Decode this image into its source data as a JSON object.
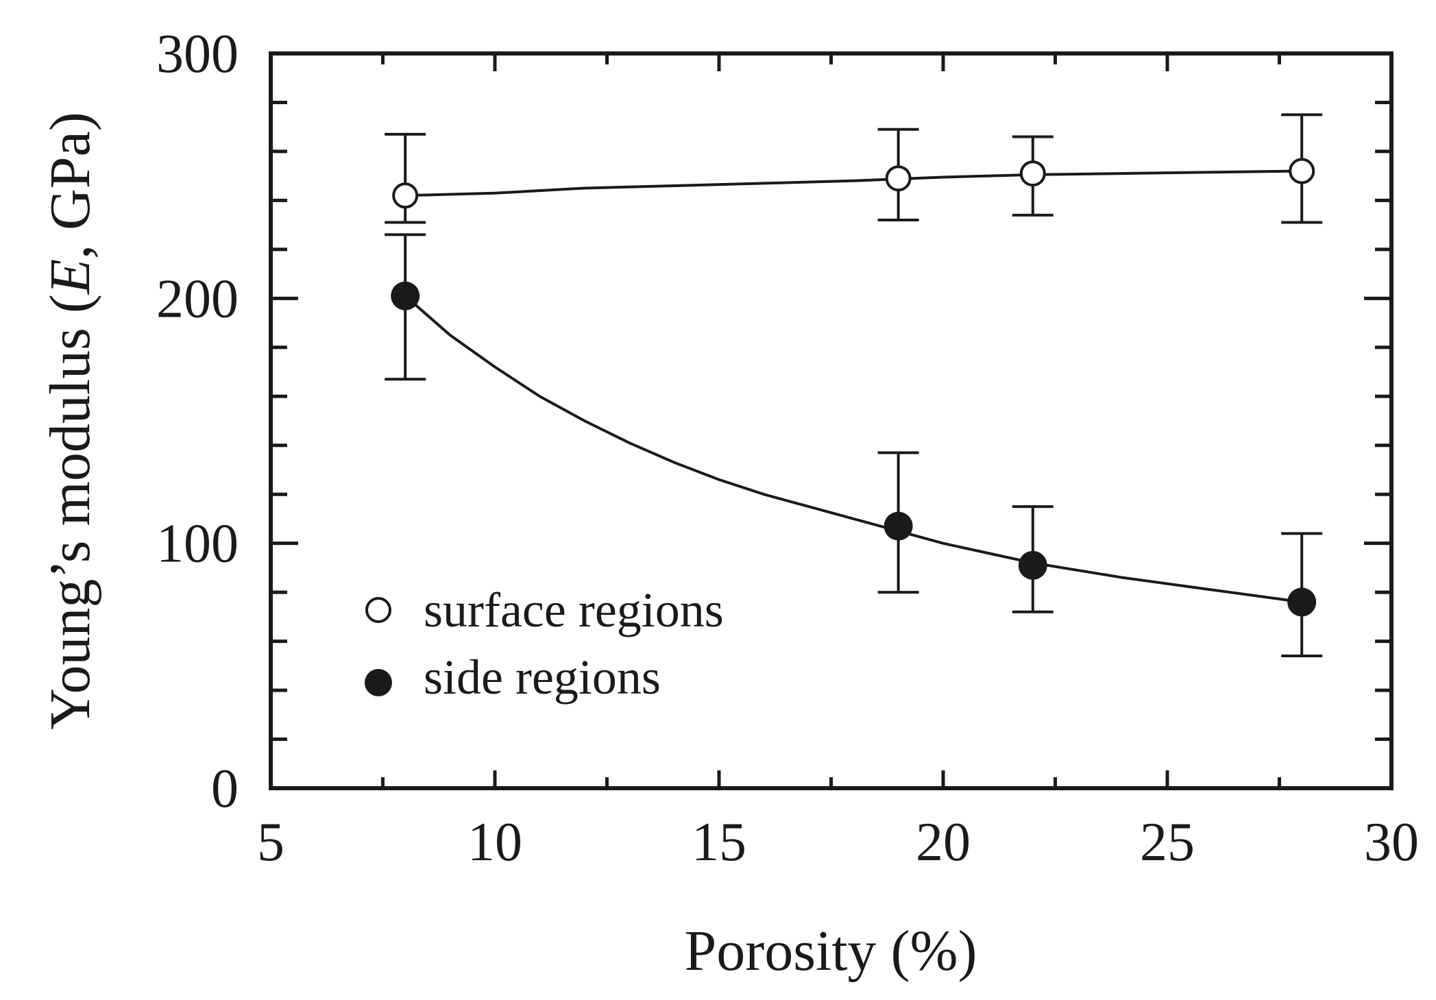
{
  "chart_data": {
    "type": "scatter",
    "title": "",
    "xlabel": "Porosity (%)",
    "ylabel": "Young’s modulus (E, GPa)",
    "ylabel_parts": {
      "before": "Young’s modulus (",
      "italic": "E",
      "after": ", GPa)"
    },
    "xlim": [
      5,
      30
    ],
    "ylim": [
      0,
      300
    ],
    "xticks": [
      5,
      10,
      15,
      20,
      25,
      30
    ],
    "yticks": [
      0,
      100,
      200,
      300
    ],
    "x_minor_step": 2.5,
    "y_minor_step": 20,
    "grid": false,
    "legend_position": "bottom-left",
    "series": [
      {
        "name": "surface regions",
        "marker": "open-circle",
        "points": [
          {
            "x": 8,
            "y": 242,
            "err_low": 231,
            "err_high": 267
          },
          {
            "x": 19,
            "y": 249,
            "err_low": 232,
            "err_high": 269
          },
          {
            "x": 22,
            "y": 251,
            "err_low": 234,
            "err_high": 266
          },
          {
            "x": 28,
            "y": 252,
            "err_low": 231,
            "err_high": 275
          }
        ],
        "fit": [
          [
            8,
            242
          ],
          [
            10,
            243
          ],
          [
            12,
            245
          ],
          [
            14,
            246
          ],
          [
            16,
            247
          ],
          [
            18,
            248
          ],
          [
            20,
            249.5
          ],
          [
            22,
            250.5
          ],
          [
            24,
            251
          ],
          [
            26,
            251.5
          ],
          [
            28,
            252
          ]
        ]
      },
      {
        "name": "side regions",
        "marker": "filled-circle",
        "points": [
          {
            "x": 8,
            "y": 201,
            "err_low": 167,
            "err_high": 226
          },
          {
            "x": 19,
            "y": 107,
            "err_low": 80,
            "err_high": 137
          },
          {
            "x": 22,
            "y": 91,
            "err_low": 72,
            "err_high": 115
          },
          {
            "x": 28,
            "y": 76,
            "err_low": 54,
            "err_high": 104
          }
        ],
        "fit": [
          [
            8,
            201
          ],
          [
            9,
            185
          ],
          [
            10,
            172
          ],
          [
            11,
            160
          ],
          [
            12,
            150
          ],
          [
            13,
            141
          ],
          [
            14,
            133
          ],
          [
            15,
            126
          ],
          [
            16,
            120
          ],
          [
            17,
            115
          ],
          [
            18,
            110
          ],
          [
            19,
            105
          ],
          [
            20,
            100
          ],
          [
            21,
            96
          ],
          [
            22,
            92
          ],
          [
            24,
            86
          ],
          [
            26,
            81
          ],
          [
            28,
            76
          ]
        ]
      }
    ]
  }
}
